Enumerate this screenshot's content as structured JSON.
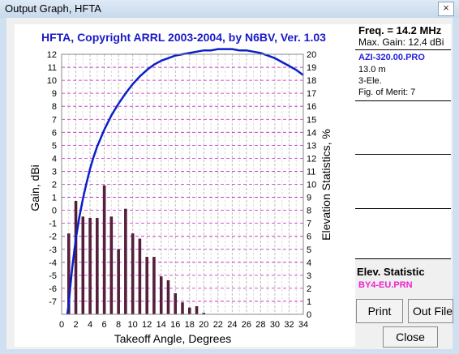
{
  "window": {
    "title": "Output Graph, HFTA",
    "close_symbol": "×"
  },
  "chart_data": {
    "type": "bar",
    "title": "HFTA, Copyright ARRL 2003-2004, by N6BV, Ver. 1.03",
    "xlabel": "Takeoff Angle, Degrees",
    "ylabel": "Gain, dBi",
    "y2label": "Elevation Statistics, %",
    "xlim": [
      0,
      34
    ],
    "ylim": [
      -8,
      12
    ],
    "y2lim": [
      0,
      20
    ],
    "x_ticks": [
      0,
      2,
      4,
      6,
      8,
      10,
      12,
      14,
      16,
      18,
      20,
      22,
      24,
      26,
      28,
      30,
      32,
      34
    ],
    "y_ticks": [
      12,
      11,
      10,
      9,
      8,
      7,
      6,
      5,
      4,
      3,
      2,
      1,
      0,
      -1,
      -2,
      -3,
      -4,
      -5,
      -6,
      -7
    ],
    "y2_ticks": [
      20,
      19,
      18,
      17,
      16,
      15,
      14,
      13,
      12,
      11,
      10,
      9,
      8,
      7,
      6,
      5,
      4,
      3,
      2,
      1,
      0
    ],
    "grid": true,
    "series": [
      {
        "kind": "bar",
        "axis": "right",
        "color": "#5a1f3c",
        "x": [
          1,
          2,
          3,
          4,
          5,
          6,
          7,
          8,
          9,
          10,
          11,
          12,
          13,
          14,
          15,
          16,
          17,
          18,
          19,
          20
        ],
        "values": [
          6.2,
          8.7,
          7.5,
          7.4,
          7.4,
          9.9,
          7.5,
          5.0,
          8.1,
          6.2,
          5.8,
          4.4,
          4.4,
          2.9,
          2.6,
          1.6,
          0.9,
          0.5,
          0.6,
          0.1
        ]
      },
      {
        "kind": "line",
        "axis": "left",
        "color": "#0a1fc8",
        "x": [
          0.8,
          1,
          1.2,
          1.5,
          2,
          2.5,
          3,
          3.5,
          4,
          4.5,
          5,
          6,
          7,
          8,
          9,
          10,
          11,
          12,
          13,
          14,
          15,
          16,
          17,
          18,
          19,
          20,
          21,
          22,
          23,
          24,
          25,
          26,
          27,
          28,
          29,
          30,
          31,
          32,
          33,
          34
        ],
        "values": [
          -8,
          -7.2,
          -6.0,
          -4.4,
          -2.2,
          -0.5,
          0.9,
          2.1,
          3.2,
          4.1,
          4.9,
          6.2,
          7.3,
          8.2,
          9.0,
          9.7,
          10.3,
          10.8,
          11.2,
          11.5,
          11.7,
          11.9,
          12.0,
          12.1,
          12.2,
          12.3,
          12.3,
          12.4,
          12.4,
          12.4,
          12.3,
          12.3,
          12.2,
          12.1,
          11.9,
          11.7,
          11.4,
          11.1,
          10.8,
          10.4
        ]
      }
    ]
  },
  "panel": {
    "freq": "Freq. = 14.2 MHz",
    "max_gain": "Max. Gain: 12.4 dBi",
    "antenna_file": "AZI-320.00.PRO",
    "height": "13.0 m",
    "elements": "3-Ele.",
    "figure_of_merit": "Fig. of Merit:  7"
  },
  "elev_statistic": {
    "label": "Elev. Statistic",
    "file": "BY4-EU.PRN"
  },
  "buttons": {
    "print": "Print",
    "out_file": "Out File",
    "close": "Close"
  }
}
